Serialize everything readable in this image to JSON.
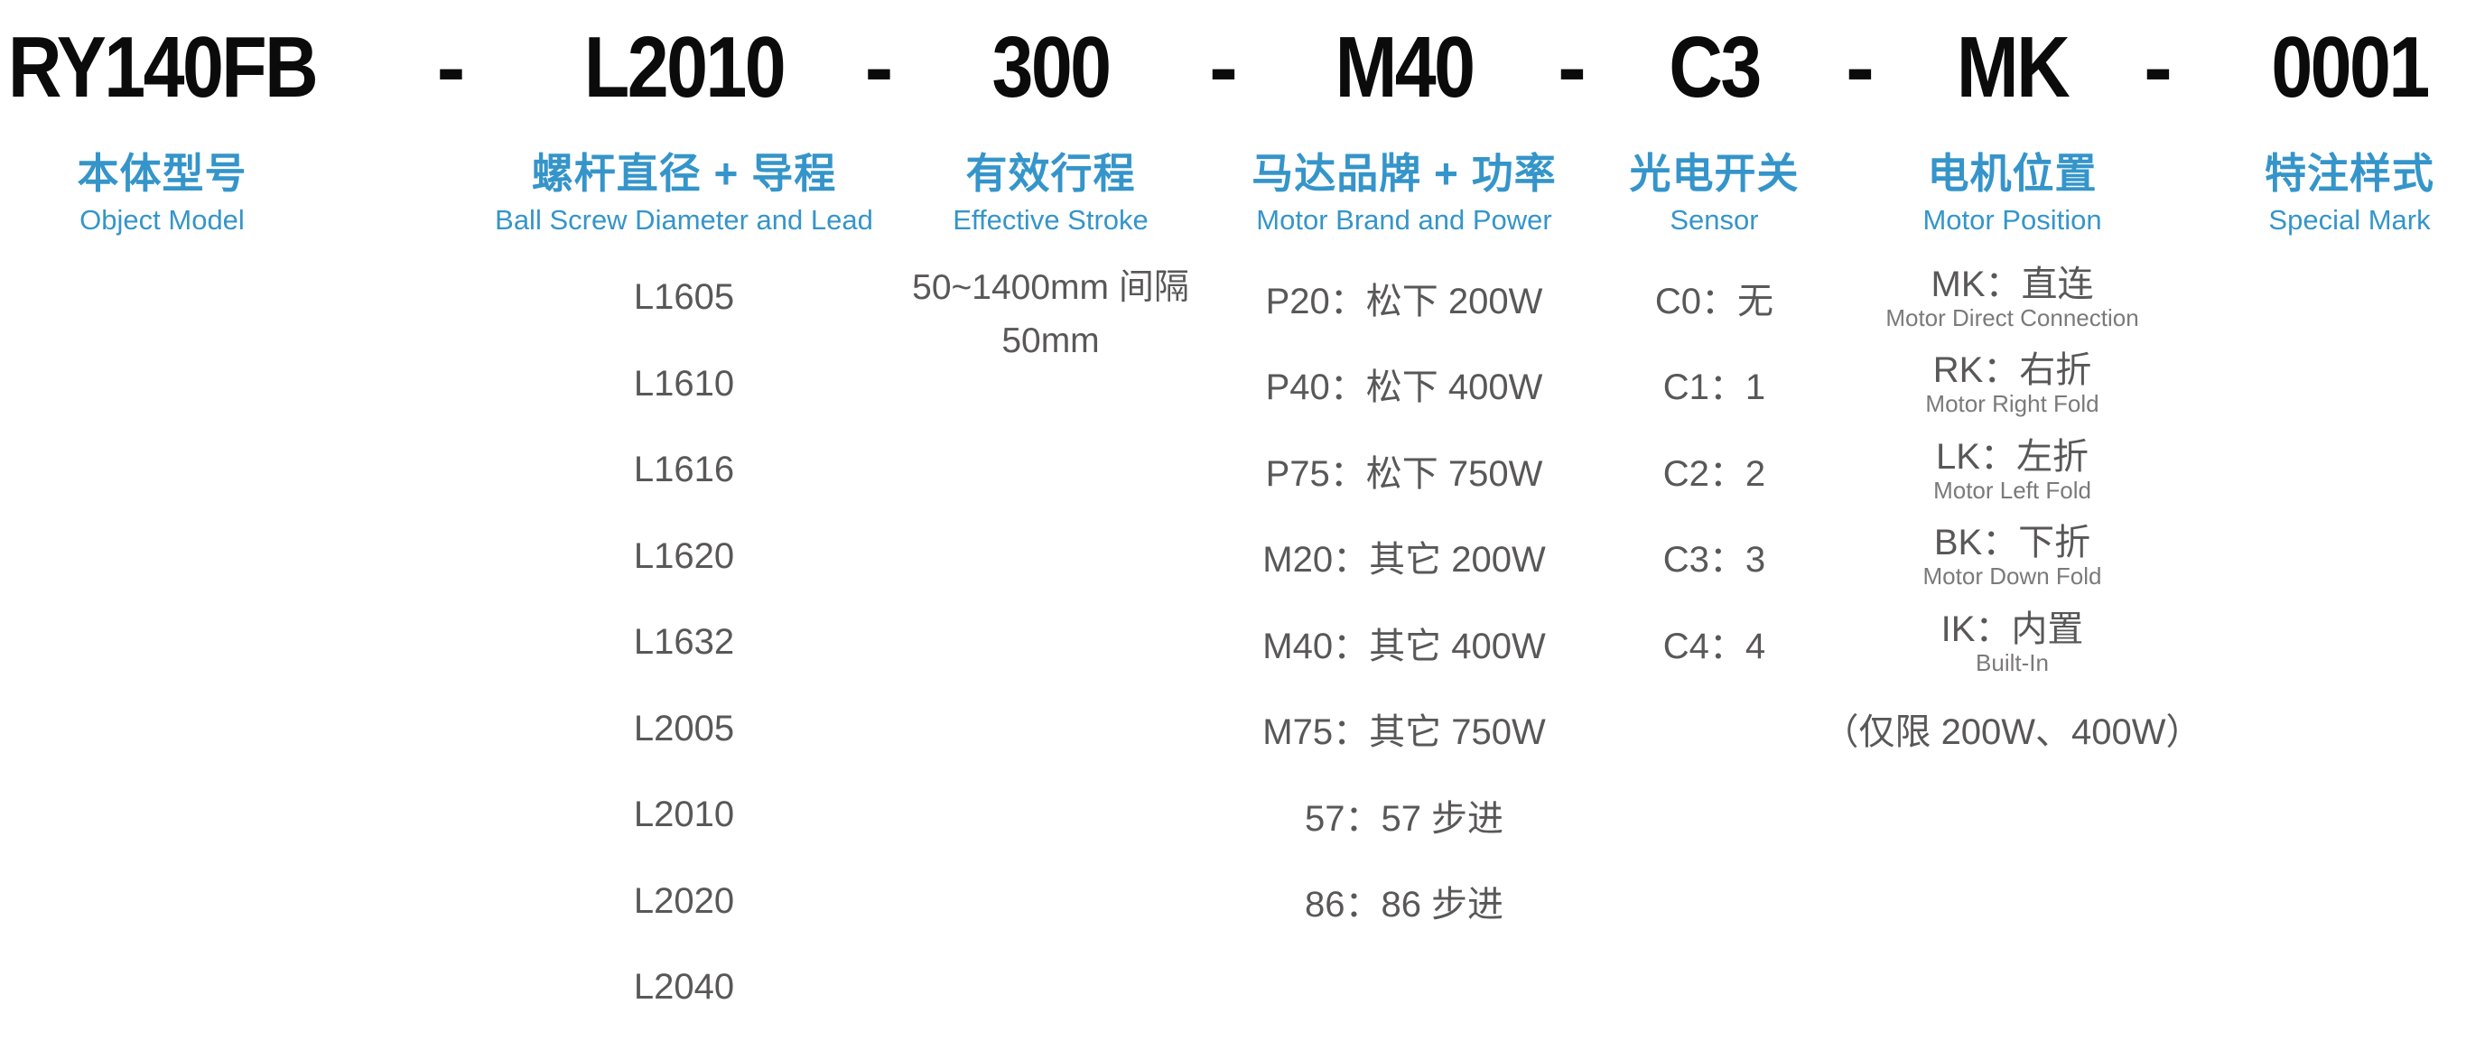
{
  "model_row": {
    "segments": [
      "RY140FB",
      "L2010",
      "300",
      "M40",
      "C3",
      "MK",
      "0001"
    ],
    "separator": "-"
  },
  "columns": [
    {
      "id": "object-model",
      "title_cn": "本体型号",
      "title_en": "Object Model"
    },
    {
      "id": "ball-screw",
      "title_cn": "螺杆直径 + 导程",
      "title_en": "Ball Screw Diameter and Lead",
      "items": [
        "L1605",
        "L1610",
        "L1616",
        "L1620",
        "L1632",
        "L2005",
        "L2010",
        "L2020",
        "L2040"
      ]
    },
    {
      "id": "effective-stroke",
      "title_cn": "有效行程",
      "title_en": "Effective Stroke",
      "lines": [
        "50~1400mm 间隔",
        "50mm"
      ]
    },
    {
      "id": "motor-brand-power",
      "title_cn": "马达品牌 + 功率",
      "title_en": "Motor Brand and Power",
      "items": [
        "P20：松下 200W",
        "P40：松下 400W",
        "P75：松下 750W",
        "M20：其它 200W",
        "M40：其它 400W",
        "M75：其它 750W",
        "57：57 步进",
        "86：86 步进"
      ]
    },
    {
      "id": "sensor",
      "title_cn": "光电开关",
      "title_en": "Sensor",
      "items": [
        "C0：无",
        "C1：1",
        "C2：2",
        "C3：3",
        "C4：4"
      ]
    },
    {
      "id": "motor-position",
      "title_cn": "电机位置",
      "title_en": "Motor Position",
      "options": [
        {
          "code": "MK：直连",
          "en": "Motor Direct Connection"
        },
        {
          "code": "RK：右折",
          "en": "Motor Right Fold"
        },
        {
          "code": "LK：左折",
          "en": "Motor Left Fold"
        },
        {
          "code": "BK：下折",
          "en": "Motor Down Fold"
        },
        {
          "code": "IK：内置",
          "en": "Built-In"
        }
      ],
      "note": "（仅限 200W、400W）"
    },
    {
      "id": "special-mark",
      "title_cn": "特注样式",
      "title_en": "Special Mark"
    }
  ],
  "colors": {
    "accent_blue": "#3595CA",
    "model_black": "#0B0B0B",
    "option_gray": "#595757",
    "subtext_gray": "#7B7979",
    "background": "#FFFFFF"
  }
}
